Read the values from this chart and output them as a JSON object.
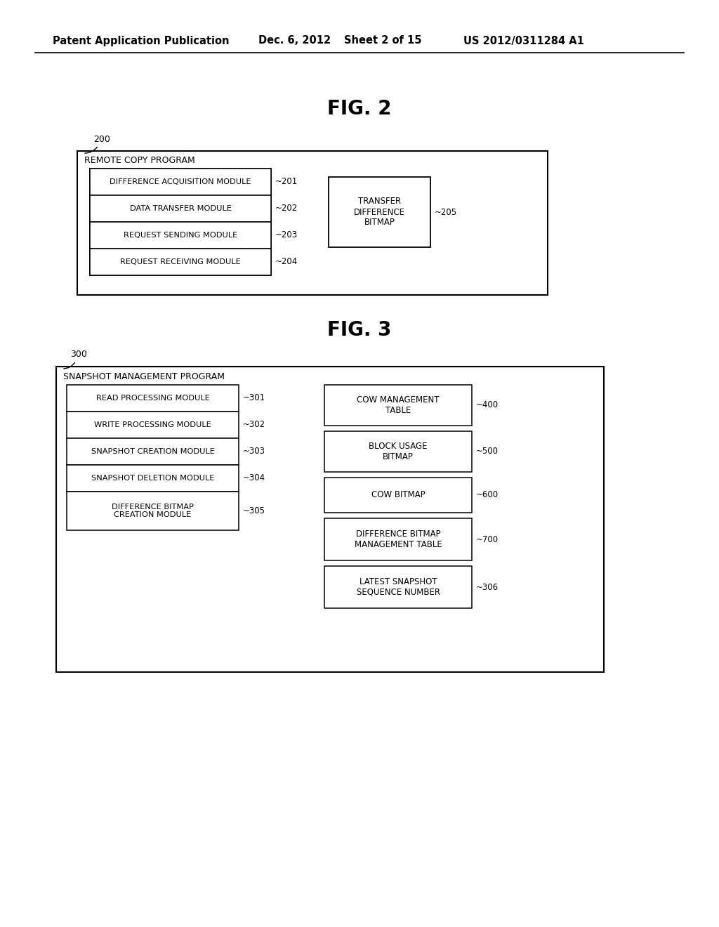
{
  "bg_color": "#ffffff",
  "header_text": "Patent Application Publication",
  "header_date": "Dec. 6, 2012",
  "header_sheet": "Sheet 2 of 15",
  "header_patent": "US 2012/0311284 A1",
  "fig2_title": "FIG. 2",
  "fig3_title": "FIG. 3",
  "fig2": {
    "outer_label": "200",
    "outer_box_title": "REMOTE COPY PROGRAM",
    "left_modules": [
      {
        "label": "DIFFERENCE ACQUISITION MODULE",
        "num": "~201"
      },
      {
        "label": "DATA TRANSFER MODULE",
        "num": "~202"
      },
      {
        "label": "REQUEST SENDING MODULE",
        "num": "~203"
      },
      {
        "label": "REQUEST RECEIVING MODULE",
        "num": "~204"
      }
    ],
    "right_box": {
      "label": "TRANSFER\nDIFFERENCE\nBITMAP",
      "num": "~205"
    }
  },
  "fig3": {
    "outer_label": "300",
    "outer_box_title": "SNAPSHOT MANAGEMENT PROGRAM",
    "left_modules": [
      {
        "label": "READ PROCESSING MODULE",
        "num": "~301"
      },
      {
        "label": "WRITE PROCESSING MODULE",
        "num": "~302"
      },
      {
        "label": "SNAPSHOT CREATION MODULE",
        "num": "~303"
      },
      {
        "label": "SNAPSHOT DELETION MODULE",
        "num": "~304"
      },
      {
        "label": "DIFFERENCE BITMAP\nCREATION MODULE",
        "num": "~305"
      }
    ],
    "right_modules": [
      {
        "label": "COW MANAGEMENT\nTABLE",
        "num": "~400"
      },
      {
        "label": "BLOCK USAGE\nBITMAP",
        "num": "~500"
      },
      {
        "label": "COW BITMAP",
        "num": "~600"
      },
      {
        "label": "DIFFERENCE BITMAP\nMANAGEMENT TABLE",
        "num": "~700"
      },
      {
        "label": "LATEST SNAPSHOT\nSEQUENCE NUMBER",
        "num": "~306"
      }
    ]
  }
}
